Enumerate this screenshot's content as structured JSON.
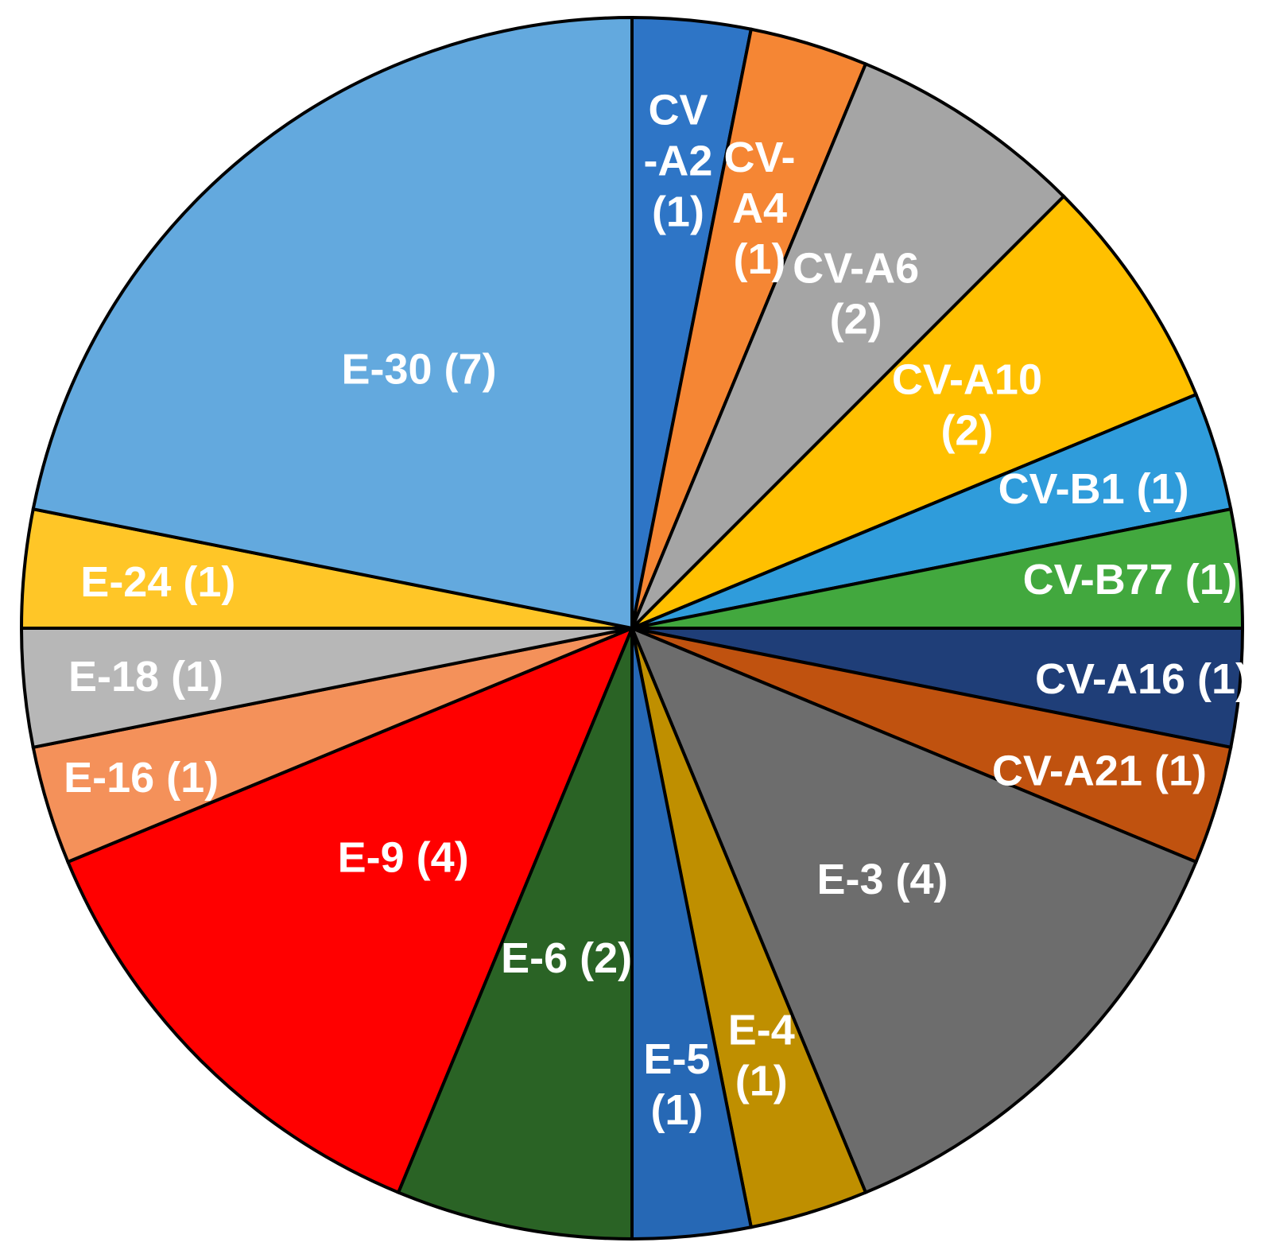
{
  "chart_data": {
    "type": "pie",
    "start_angle_deg": 0,
    "direction": "clockwise",
    "slices": [
      {
        "label": "CV-A2 (1)",
        "lines": [
          "CV",
          "-A2",
          "(1)"
        ],
        "value": 1,
        "color": "#2E75C6",
        "text_color": "#FFFFFF"
      },
      {
        "label": "CV-A4 (1)",
        "lines": [
          "CV-",
          "A4",
          "(1)"
        ],
        "value": 1,
        "color": "#F58634",
        "text_color": "#FFFFFF"
      },
      {
        "label": "CV-A6 (2)",
        "lines": [
          "CV-A6",
          "(2)"
        ],
        "value": 2,
        "color": "#A5A5A5",
        "text_color": "#FFFFFF"
      },
      {
        "label": "CV-A10 (2)",
        "lines": [
          "CV-A10",
          "(2)"
        ],
        "value": 2,
        "color": "#FFC000",
        "text_color": "#FFFFFF"
      },
      {
        "label": "CV-B1 (1)",
        "lines": [
          "CV-B1 (1)"
        ],
        "value": 1,
        "color": "#2F9CDB",
        "text_color": "#FFFFFF"
      },
      {
        "label": "CV-B77 (1)",
        "lines": [
          "CV-B77 (1)"
        ],
        "value": 1,
        "color": "#42A83E",
        "text_color": "#FFFFFF"
      },
      {
        "label": "CV-A16 (1)",
        "lines": [
          "CV-A16 (1)"
        ],
        "value": 1,
        "color": "#1F3E78",
        "text_color": "#FFFFFF"
      },
      {
        "label": "CV-A21 (1)",
        "lines": [
          "CV-A21 (1)"
        ],
        "value": 1,
        "color": "#C0520F",
        "text_color": "#FFFFFF"
      },
      {
        "label": "E-3 (4)",
        "lines": [
          "E-3 (4)"
        ],
        "value": 4,
        "color": "#6D6D6D",
        "text_color": "#FFFFFF"
      },
      {
        "label": "E-4 (1)",
        "lines": [
          "E-4",
          "(1)"
        ],
        "value": 1,
        "color": "#BF8F00",
        "text_color": "#FFFFFF"
      },
      {
        "label": "E-5 (1)",
        "lines": [
          "E-5",
          "(1)"
        ],
        "value": 1,
        "color": "#2668B5",
        "text_color": "#FFFFFF"
      },
      {
        "label": "E-6 (2)",
        "lines": [
          "E-6 (2)"
        ],
        "value": 2,
        "color": "#2A6325",
        "text_color": "#FFFFFF"
      },
      {
        "label": "E-9 (4)",
        "lines": [
          "E-9 (4)"
        ],
        "value": 4,
        "color": "#FF0000",
        "text_color": "#FFFFFF"
      },
      {
        "label": "E-16 (1)",
        "lines": [
          "E-16 (1)"
        ],
        "value": 1,
        "color": "#F4915A",
        "text_color": "#FFFFFF"
      },
      {
        "label": "E-18 (1)",
        "lines": [
          "E-18 (1)"
        ],
        "value": 1,
        "color": "#B7B7B7",
        "text_color": "#FFFFFF"
      },
      {
        "label": "E-24 (1)",
        "lines": [
          "E-24 (1)"
        ],
        "value": 1,
        "color": "#FFC627",
        "text_color": "#FFFFFF"
      },
      {
        "label": "E-30 (7)",
        "lines": [
          "E-30 (7)"
        ],
        "value": 7,
        "color": "#63A9DE",
        "text_color": "#FFFFFF"
      }
    ]
  }
}
